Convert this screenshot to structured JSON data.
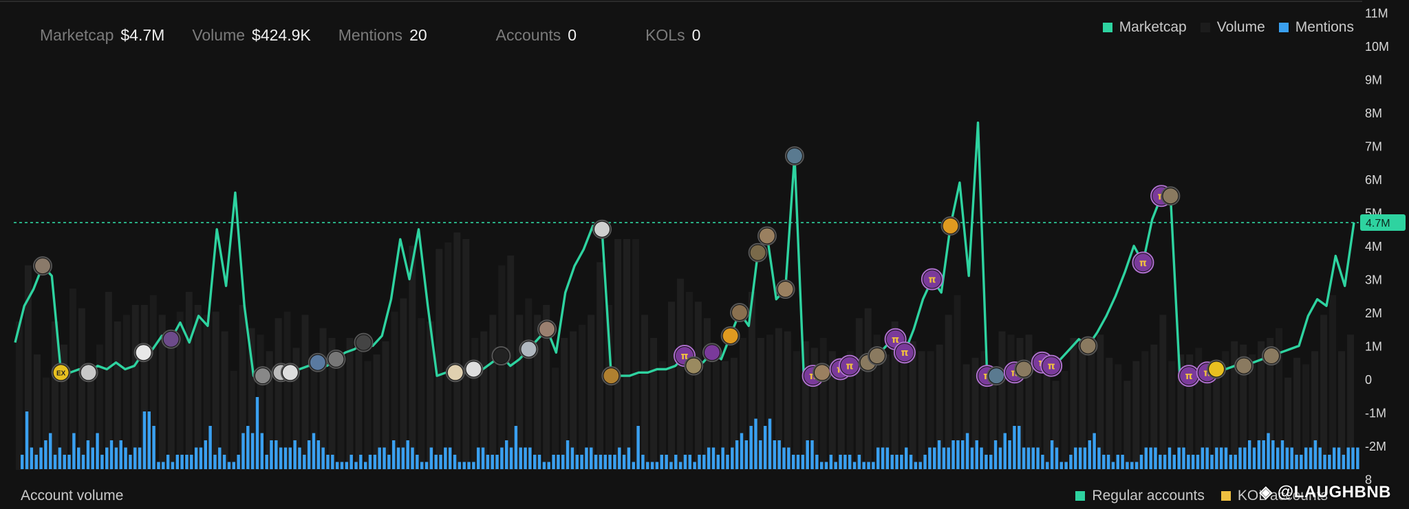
{
  "stats": [
    {
      "label": "Marketcap",
      "value": "$4.7M"
    },
    {
      "label": "Volume",
      "value": "$424.9K"
    },
    {
      "label": "Mentions",
      "value": "20"
    },
    {
      "label": "Accounts",
      "value": "0"
    },
    {
      "label": "KOLs",
      "value": "0"
    }
  ],
  "legend_top": [
    {
      "label": "Marketcap",
      "color": "#2ed3a0"
    },
    {
      "label": "Volume",
      "color": "#1c1c1c"
    },
    {
      "label": "Mentions",
      "color": "#3aa0f0"
    }
  ],
  "bottom_title": "Account volume",
  "legend_bottom": [
    {
      "label": "Regular accounts",
      "color": "#2ed3a0"
    },
    {
      "label": "KOL accounts",
      "color": "#f0c040"
    }
  ],
  "watermark": "◈ @LAUGHBNB",
  "chart_data": {
    "type": "line",
    "y_axis_labels": [
      "11M",
      "10M",
      "9M",
      "8M",
      "7M",
      "6M",
      "5M",
      "4M",
      "3M",
      "2M",
      "1M",
      "0",
      "-1M",
      "-2M",
      "8"
    ],
    "ylim": [
      -3,
      11
    ],
    "current_value_label": "4.7M",
    "current_value": 4.7,
    "marketcap_series": [
      1.1,
      2.2,
      2.7,
      3.4,
      3.1,
      0.2,
      0.2,
      0.3,
      0.2,
      0.4,
      0.3,
      0.5,
      0.3,
      0.4,
      0.8,
      0.9,
      1.3,
      1.2,
      1.7,
      1.1,
      1.9,
      1.6,
      4.5,
      2.8,
      5.6,
      2.2,
      0.1,
      0.1,
      0.2,
      0.2,
      0.2,
      0.3,
      0.4,
      0.5,
      0.4,
      0.6,
      0.8,
      0.9,
      1.1,
      1.0,
      1.3,
      2.4,
      4.2,
      3.0,
      4.5,
      2.2,
      0.1,
      0.2,
      0.2,
      0.2,
      0.3,
      0.3,
      0.5,
      0.7,
      0.4,
      0.6,
      0.9,
      1.2,
      1.5,
      0.8,
      2.6,
      3.4,
      3.9,
      4.6,
      4.5,
      0.1,
      0.1,
      0.1,
      0.2,
      0.2,
      0.3,
      0.3,
      0.4,
      0.7,
      0.4,
      0.5,
      0.8,
      0.6,
      1.3,
      2.0,
      1.6,
      3.8,
      4.3,
      2.4,
      2.7,
      6.7,
      0.1,
      0.1,
      0.2,
      0.2,
      0.3,
      0.4,
      0.4,
      0.5,
      0.7,
      1.0,
      1.2,
      0.8,
      1.5,
      2.4,
      3.0,
      2.6,
      4.6,
      5.9,
      3.1,
      7.7,
      0.1,
      0.1,
      0.2,
      0.2,
      0.3,
      0.4,
      0.5,
      0.4,
      0.6,
      0.9,
      1.2,
      1.0,
      1.4,
      1.9,
      2.5,
      3.2,
      4.0,
      3.5,
      4.8,
      5.5,
      5.5,
      0.1,
      0.1,
      0.2,
      0.2,
      0.3,
      0.3,
      0.4,
      0.4,
      0.5,
      0.6,
      0.7,
      0.8,
      0.9,
      1.0,
      1.9,
      2.4,
      2.2,
      3.7,
      2.8,
      4.7
    ],
    "volume_bars": [
      4.5,
      6.2,
      3.5,
      2.8,
      4.5,
      3.8,
      5.5,
      4.9,
      3.2,
      3.8,
      5.4,
      4.5,
      4.7,
      5.0,
      5.0,
      5.3,
      4.7,
      4.0,
      4.8,
      5.4,
      5.0,
      4.7,
      4.8,
      4.2,
      3.0,
      5.0,
      4.3,
      4.1,
      3.6,
      4.6,
      4.8,
      3.7,
      4.7,
      3.2,
      4.3,
      4.0,
      3.4,
      4.0,
      3.6,
      3.3,
      3.5,
      3.9,
      4.8,
      5.2,
      6.8,
      4.6,
      4.5,
      6.7,
      6.9,
      7.2,
      7.0,
      4.0,
      4.2,
      4.7,
      6.2,
      6.5,
      4.7,
      5.2,
      4.7,
      5.0,
      3.1,
      4.0,
      4.2,
      4.4,
      4.7,
      6.3,
      5.0,
      7.0,
      7.0,
      7.0,
      4.7,
      4.0,
      3.3,
      5.1,
      5.8,
      5.4,
      5.1,
      4.6,
      3.3,
      3.3,
      3.4,
      4.0,
      5.4,
      4.0,
      4.1,
      4.3,
      4.2,
      3.6,
      3.9,
      3.7,
      4.0,
      3.6,
      3.0,
      3.6,
      4.6,
      4.9,
      4.1,
      3.5,
      4.5,
      3.8,
      3.9,
      3.6,
      3.6,
      3.8,
      4.7,
      5.3,
      3.2,
      3.4,
      3.6,
      3.1,
      4.2,
      4.1,
      4.0,
      4.1,
      3.6,
      3.0,
      2.7,
      3.0,
      4.0,
      3.9,
      3.6,
      4.1,
      3.4,
      3.2,
      2.7,
      3.3,
      3.6,
      3.8,
      4.7,
      3.3,
      3.5,
      3.5,
      3.7,
      3.3,
      3.1,
      3.6,
      3.9,
      3.8,
      3.5,
      3.9,
      4.0,
      4.3,
      2.8,
      3.4,
      3.2,
      3.6,
      4.7,
      5.3,
      3.6,
      4.1
    ],
    "mentions_bars": [
      2,
      8,
      3,
      2,
      3,
      4,
      5,
      2,
      3,
      2,
      2,
      5,
      3,
      2,
      4,
      3,
      5,
      2,
      3,
      4,
      3,
      4,
      3,
      2,
      3,
      3,
      8,
      8,
      6,
      1,
      1,
      2,
      1,
      2,
      2,
      2,
      2,
      3,
      3,
      4,
      6,
      2,
      3,
      2,
      1,
      1,
      2,
      5,
      6,
      5,
      10,
      5,
      2,
      4,
      4,
      3,
      3,
      3,
      4,
      3,
      2,
      4,
      5,
      4,
      3,
      2,
      2,
      1,
      1,
      1,
      2,
      1,
      2,
      1,
      2,
      2,
      3,
      3,
      2,
      4,
      3,
      3,
      4,
      3,
      2,
      1,
      1,
      3,
      2,
      2,
      3,
      3,
      2,
      1,
      1,
      1,
      1,
      3,
      3,
      2,
      2,
      2,
      3,
      4,
      3,
      6,
      3,
      3,
      3,
      2,
      2,
      1,
      1,
      2,
      2,
      2,
      4,
      3,
      2,
      2,
      3,
      3,
      2,
      2,
      2,
      2,
      2,
      3,
      2,
      3,
      1,
      6,
      2,
      1,
      1,
      1,
      2,
      2,
      1,
      2,
      1,
      2,
      2,
      1,
      2,
      2,
      3,
      3,
      2,
      3,
      2,
      3,
      4,
      5,
      4,
      6,
      7,
      4,
      6,
      7,
      4,
      4,
      3,
      3,
      2,
      2,
      2,
      4,
      4,
      2,
      1,
      1,
      2,
      1,
      2,
      2,
      2,
      1,
      2,
      1,
      1,
      1,
      3,
      3,
      3,
      2,
      2,
      2,
      3,
      2,
      1,
      1,
      2,
      3,
      3,
      4,
      3,
      3,
      4,
      4,
      4,
      5,
      3,
      4,
      3,
      2,
      2,
      4,
      3,
      5,
      4,
      6,
      6,
      3,
      3,
      3,
      3,
      2,
      1,
      4,
      3,
      1,
      1,
      2,
      3,
      3,
      3,
      4,
      5,
      3,
      2,
      2,
      1,
      2,
      2,
      1,
      1,
      1,
      2,
      3,
      3,
      3,
      2,
      2,
      3,
      2,
      3,
      3,
      2,
      2,
      2,
      3,
      3,
      2,
      3,
      3,
      3,
      2,
      2,
      3,
      3,
      4,
      3,
      4,
      4,
      5,
      4,
      3,
      4,
      3,
      3,
      2,
      2,
      3,
      3,
      4,
      3,
      2,
      2,
      3,
      3,
      2,
      3,
      3,
      3
    ],
    "markers": [
      {
        "i": 3,
        "kind": "avatar",
        "color": "#8a7a6a"
      },
      {
        "i": 5,
        "kind": "badge",
        "color": "#e8c020",
        "text": "EX"
      },
      {
        "i": 8,
        "kind": "avatar",
        "color": "#c9c9c9"
      },
      {
        "i": 14,
        "kind": "avatar",
        "color": "#e8e8e8"
      },
      {
        "i": 17,
        "kind": "avatar",
        "color": "#6d4b8a"
      },
      {
        "i": 27,
        "kind": "avatar",
        "color": "#888888"
      },
      {
        "i": 29,
        "kind": "avatar",
        "color": "#bbbbbb"
      },
      {
        "i": 30,
        "kind": "avatar",
        "color": "#dddddd"
      },
      {
        "i": 33,
        "kind": "avatar",
        "color": "#5a7aa0"
      },
      {
        "i": 35,
        "kind": "avatar",
        "color": "#777777"
      },
      {
        "i": 38,
        "kind": "avatar",
        "color": "#444444"
      },
      {
        "i": 48,
        "kind": "avatar",
        "color": "#e0d0b0"
      },
      {
        "i": 50,
        "kind": "avatar",
        "color": "#dddddd"
      },
      {
        "i": 53,
        "kind": "avatar",
        "color": "#222222"
      },
      {
        "i": 56,
        "kind": "avatar",
        "color": "#b0b8c0"
      },
      {
        "i": 58,
        "kind": "avatar",
        "color": "#9a8070"
      },
      {
        "i": 64,
        "kind": "avatar",
        "color": "#cfcfcf"
      },
      {
        "i": 65,
        "kind": "avatar",
        "color": "#b08030"
      },
      {
        "i": 73,
        "kind": "pi",
        "color": "#7a3a9a"
      },
      {
        "i": 74,
        "kind": "avatar",
        "color": "#9a8a60"
      },
      {
        "i": 76,
        "kind": "avatar",
        "color": "#7a3a9a"
      },
      {
        "i": 78,
        "kind": "badge",
        "color": "#e09a20",
        "text": ""
      },
      {
        "i": 79,
        "kind": "avatar",
        "color": "#8a7050"
      },
      {
        "i": 81,
        "kind": "avatar",
        "color": "#7a6a4a"
      },
      {
        "i": 82,
        "kind": "avatar",
        "color": "#9a8060"
      },
      {
        "i": 84,
        "kind": "avatar",
        "color": "#9a8060"
      },
      {
        "i": 85,
        "kind": "avatar",
        "color": "#5a7a90"
      },
      {
        "i": 87,
        "kind": "pi",
        "color": "#7a3a9a"
      },
      {
        "i": 88,
        "kind": "avatar",
        "color": "#9a8060"
      },
      {
        "i": 90,
        "kind": "pi",
        "color": "#7a3a9a"
      },
      {
        "i": 91,
        "kind": "pi",
        "color": "#7a3a9a"
      },
      {
        "i": 93,
        "kind": "avatar",
        "color": "#8a7a60"
      },
      {
        "i": 94,
        "kind": "avatar",
        "color": "#8a7a60"
      },
      {
        "i": 96,
        "kind": "pi",
        "color": "#7a3a9a"
      },
      {
        "i": 97,
        "kind": "pi",
        "color": "#7a3a9a"
      },
      {
        "i": 100,
        "kind": "pi",
        "color": "#7a3a9a"
      },
      {
        "i": 102,
        "kind": "badge",
        "color": "#e09a20",
        "text": ""
      },
      {
        "i": 106,
        "kind": "pi",
        "color": "#7a3a9a"
      },
      {
        "i": 107,
        "kind": "avatar",
        "color": "#5a7a90"
      },
      {
        "i": 109,
        "kind": "pi",
        "color": "#7a3a9a"
      },
      {
        "i": 110,
        "kind": "avatar",
        "color": "#8a7a60"
      },
      {
        "i": 112,
        "kind": "pi",
        "color": "#7a3a9a"
      },
      {
        "i": 113,
        "kind": "pi",
        "color": "#7a3a9a"
      },
      {
        "i": 117,
        "kind": "avatar",
        "color": "#8a7a60"
      },
      {
        "i": 123,
        "kind": "pi",
        "color": "#7a3a9a"
      },
      {
        "i": 125,
        "kind": "pi",
        "color": "#7a3a9a"
      },
      {
        "i": 126,
        "kind": "avatar",
        "color": "#8a7a60"
      },
      {
        "i": 128,
        "kind": "pi",
        "color": "#7a3a9a"
      },
      {
        "i": 130,
        "kind": "pi",
        "color": "#7a3a9a"
      },
      {
        "i": 131,
        "kind": "badge",
        "color": "#e8c020",
        "text": ""
      },
      {
        "i": 134,
        "kind": "avatar",
        "color": "#8a7a60"
      },
      {
        "i": 137,
        "kind": "avatar",
        "color": "#8a7a60"
      }
    ]
  }
}
